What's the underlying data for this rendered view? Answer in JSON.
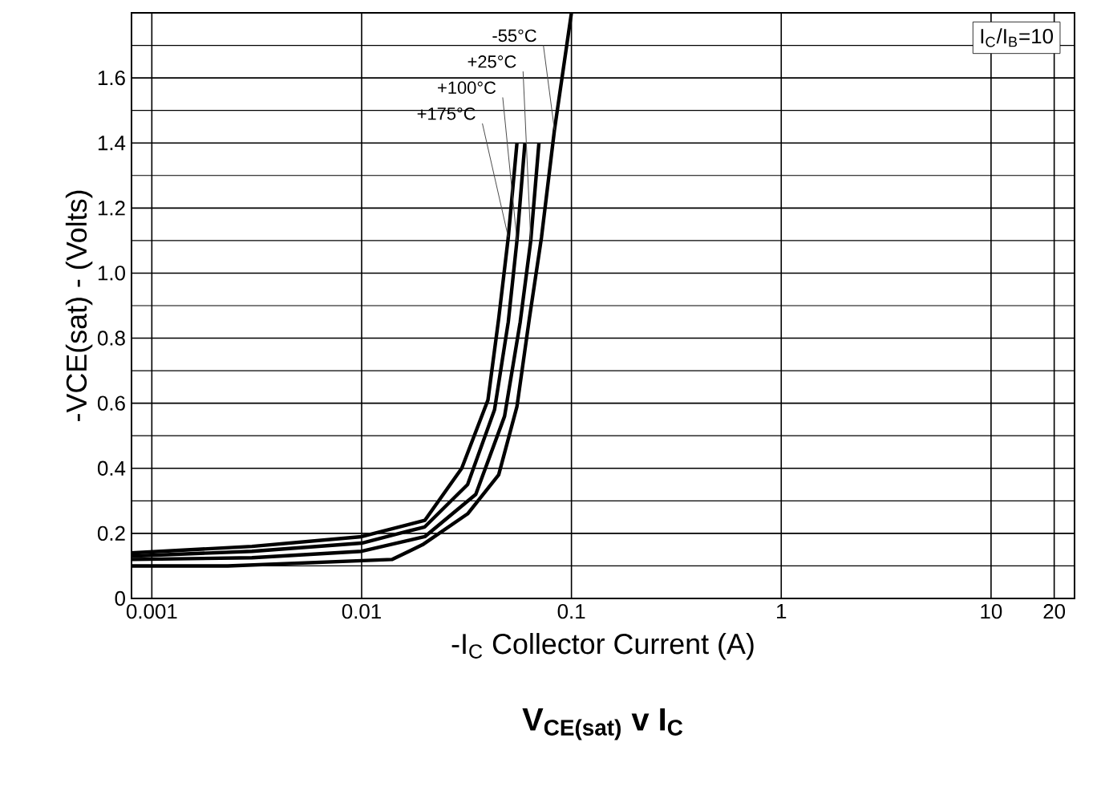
{
  "chart_data": {
    "type": "line",
    "title": "V$_{CE(sat)}$ v I$_{C}$",
    "xlabel": "-I$_{C}$ Collector Current (A)",
    "ylabel": "-VCE(sat) - (Volts)",
    "annotations": [
      "I$_{C}$/I$_{B}$=10"
    ],
    "log": "x",
    "grid": true,
    "marker": "none",
    "line_style": "solid",
    "xlim": [
      0.0008,
      25
    ],
    "xticks": [
      0.001,
      0.01,
      0.1,
      1,
      10,
      20
    ],
    "ylim": [
      0,
      1.8
    ],
    "yticks": [
      0,
      0.2,
      0.4,
      0.6,
      0.8,
      {
        "value": 1.0,
        "label": "1.0"
      },
      1.2,
      1.4,
      1.6,
      {
        "value": 1.8,
        "label": null
      }
    ],
    "series": [
      {
        "name": "-55°C",
        "color": "#000000",
        "x": [
          0.0008,
          0.0023,
          0.014,
          0.0195,
          0.032,
          0.045,
          0.055,
          0.063,
          0.072,
          0.083,
          0.1
        ],
        "values": [
          0.1,
          0.1,
          0.12,
          0.165,
          0.26,
          0.38,
          0.59,
          0.86,
          1.11,
          1.44,
          1.8
        ]
      },
      {
        "name": "+25°C",
        "color": "#000000",
        "x": [
          0.0008,
          0.003,
          0.01,
          0.02,
          0.035,
          0.048,
          0.057,
          0.064,
          0.07
        ],
        "values": [
          0.12,
          0.125,
          0.145,
          0.19,
          0.32,
          0.56,
          0.85,
          1.1,
          1.4
        ]
      },
      {
        "name": "+100°C",
        "color": "#000000",
        "x": [
          0.0008,
          0.003,
          0.01,
          0.02,
          0.032,
          0.043,
          0.05,
          0.055,
          0.06
        ],
        "values": [
          0.13,
          0.145,
          0.17,
          0.22,
          0.35,
          0.58,
          0.85,
          1.1,
          1.4
        ]
      },
      {
        "name": "+175°C",
        "color": "#000000",
        "x": [
          0.0008,
          0.003,
          0.01,
          0.02,
          0.03,
          0.04,
          0.045,
          0.05,
          0.055
        ],
        "values": [
          0.14,
          0.16,
          0.19,
          0.24,
          0.4,
          0.61,
          0.86,
          1.11,
          1.4
        ]
      }
    ]
  }
}
